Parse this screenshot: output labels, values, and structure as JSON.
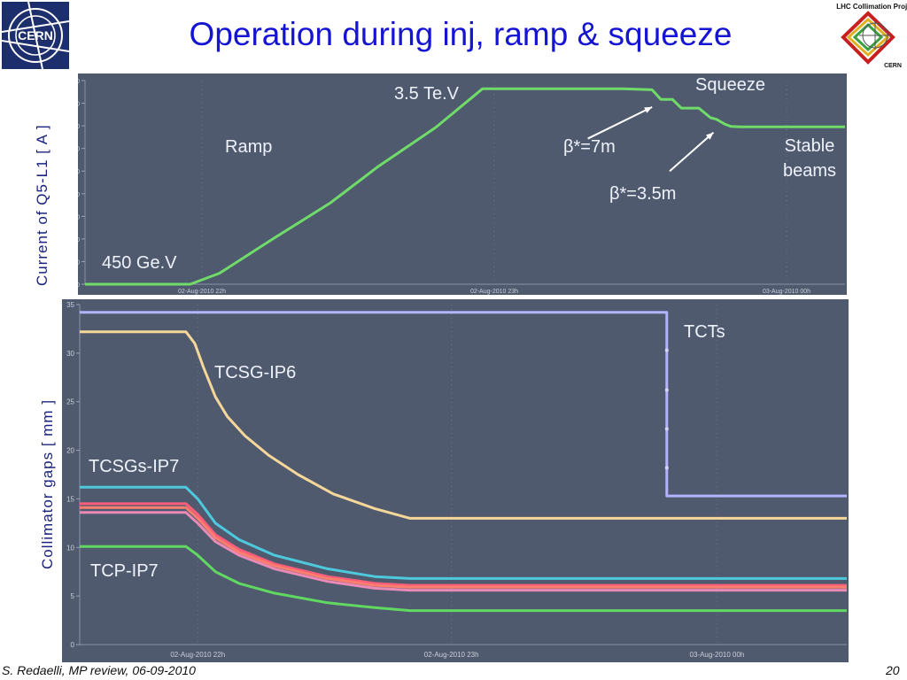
{
  "slide": {
    "title": "Operation during inj, ramp & squeeze",
    "footer_left": "S. Redaelli, MP review, 06-09-2010",
    "page_number": "20",
    "cern_logo_text": "CERN",
    "collimation_logo_text": "LHC Collimation Project",
    "collimation_logo_sub": "CERN"
  },
  "chart_data": [
    {
      "type": "line",
      "ylabel": "Current of Q5-L1 [ A ]",
      "ylim": [
        -100,
        1900
      ],
      "yticks": [
        "-100",
        "200",
        "400",
        "600",
        "800",
        "1,000",
        "1,200",
        "1,400",
        "1,600",
        "1,800"
      ],
      "xlim": [
        0,
        130
      ],
      "xticks": [
        {
          "pos": 20,
          "label": "02-Aug-2010 22h"
        },
        {
          "pos": 70,
          "label": "02-Aug-2010 23h"
        },
        {
          "pos": 120,
          "label": "03-Aug-2010 00h"
        }
      ],
      "series": [
        {
          "color": "#6fdc6a",
          "points": [
            [
              0,
              -100
            ],
            [
              18,
              -100
            ],
            [
              23,
              8
            ],
            [
              32,
              340
            ],
            [
              42,
              700
            ],
            [
              50,
              1050
            ],
            [
              60,
              1440
            ],
            [
              68,
              1820
            ],
            [
              92,
              1820
            ],
            [
              97,
              1810
            ],
            [
              98.5,
              1715
            ],
            [
              100.5,
              1715
            ],
            [
              102,
              1630
            ],
            [
              105,
              1630
            ],
            [
              107,
              1535
            ],
            [
              108,
              1520
            ],
            [
              109.5,
              1470
            ],
            [
              110.5,
              1450
            ],
            [
              112,
              1445
            ],
            [
              130,
              1445
            ]
          ]
        }
      ],
      "annotations": [
        {
          "text": "3.5 Te.V",
          "x": 53,
          "y": 1690
        },
        {
          "text": "Ramp",
          "x": 27,
          "y": 1160
        },
        {
          "text": "Squeeze",
          "x": 109,
          "y": 1750
        },
        {
          "text": "β*=7m",
          "x": 83,
          "y": 1160
        },
        {
          "text": "β*=3.5m",
          "x": 89,
          "y": 880
        },
        {
          "text": "Stable beams",
          "x": 127,
          "y": 1160
        },
        {
          "text": "450 Ge.V",
          "x": 7,
          "y": 140
        }
      ],
      "arrows": [
        {
          "from": [
            86,
            1330
          ],
          "to": [
            97,
            1640
          ]
        },
        {
          "from": [
            100,
            1010
          ],
          "to": [
            107.5,
            1390
          ]
        }
      ]
    },
    {
      "type": "line",
      "ylabel": "Collimator gaps [ mm ]",
      "ylim": [
        0,
        35
      ],
      "yticks": [
        "0",
        "5",
        "10",
        "15",
        "20",
        "25",
        "30",
        "35"
      ],
      "xlim": [
        0,
        130
      ],
      "xticks": [
        {
          "pos": 20,
          "label": "02-Aug-2010 22h"
        },
        {
          "pos": 63,
          "label": "02-Aug-2010 23h"
        },
        {
          "pos": 108,
          "label": "03-Aug-2010 00h"
        }
      ],
      "series": [
        {
          "name": "TCTs",
          "color": "#b3b3ff",
          "points": [
            [
              0,
              34.2
            ],
            [
              99.5,
              34.2
            ],
            [
              99.5,
              15.3
            ],
            [
              130,
              15.3
            ]
          ]
        },
        {
          "name": "TCSG-IP6",
          "color": "#f5d79a",
          "points": [
            [
              0,
              32.2
            ],
            [
              18,
              32.2
            ],
            [
              19.5,
              31
            ],
            [
              21,
              28.5
            ],
            [
              23,
              25.5
            ],
            [
              25,
              23.5
            ],
            [
              28,
              21.5
            ],
            [
              32,
              19.5
            ],
            [
              37,
              17.5
            ],
            [
              43,
              15.5
            ],
            [
              50,
              14
            ],
            [
              56,
              13
            ],
            [
              130,
              13
            ]
          ]
        },
        {
          "name": "TCSGs-IP7",
          "color": "#4dc9dd",
          "points": [
            [
              0,
              16.2
            ],
            [
              18,
              16.2
            ],
            [
              20,
              15
            ],
            [
              23,
              12.5
            ],
            [
              27,
              10.8
            ],
            [
              33,
              9.2
            ],
            [
              42,
              7.8
            ],
            [
              50,
              7
            ],
            [
              56,
              6.8
            ],
            [
              130,
              6.8
            ]
          ]
        },
        {
          "color": "#ff5e7a",
          "points": [
            [
              0,
              14.5
            ],
            [
              18,
              14.5
            ],
            [
              20,
              13.4
            ],
            [
              23,
              11.3
            ],
            [
              27,
              9.8
            ],
            [
              33,
              8.3
            ],
            [
              42,
              7
            ],
            [
              50,
              6.3
            ],
            [
              56,
              6.1
            ],
            [
              130,
              6.1
            ]
          ]
        },
        {
          "color": "#ff7f6e",
          "points": [
            [
              0,
              14.1
            ],
            [
              18,
              14.1
            ],
            [
              20,
              13
            ],
            [
              23,
              11
            ],
            [
              27,
              9.5
            ],
            [
              33,
              8.1
            ],
            [
              42,
              6.8
            ],
            [
              50,
              6.1
            ],
            [
              56,
              5.9
            ],
            [
              130,
              5.9
            ]
          ]
        },
        {
          "color": "#e98ab7",
          "points": [
            [
              0,
              13.6
            ],
            [
              18,
              13.6
            ],
            [
              20,
              12.5
            ],
            [
              23,
              10.6
            ],
            [
              27,
              9.2
            ],
            [
              33,
              7.8
            ],
            [
              42,
              6.5
            ],
            [
              50,
              5.8
            ],
            [
              56,
              5.6
            ],
            [
              130,
              5.6
            ]
          ]
        },
        {
          "name": "TCP-IP7",
          "color": "#61d861",
          "points": [
            [
              0,
              10.1
            ],
            [
              18,
              10.1
            ],
            [
              20,
              9.2
            ],
            [
              23,
              7.5
            ],
            [
              27,
              6.3
            ],
            [
              33,
              5.3
            ],
            [
              42,
              4.3
            ],
            [
              50,
              3.8
            ],
            [
              56,
              3.5
            ],
            [
              130,
              3.5
            ]
          ]
        }
      ],
      "annotations": [
        {
          "text": "TCTs",
          "x": 103,
          "y": 31.3
        },
        {
          "text": "TCSG-IP6",
          "x": 23,
          "y": 27.3
        },
        {
          "text": "TCSGs-IP7",
          "x": 2,
          "y": 18.3
        },
        {
          "text": "TCP-IP7",
          "x": 2,
          "y": 7.6
        }
      ]
    }
  ]
}
